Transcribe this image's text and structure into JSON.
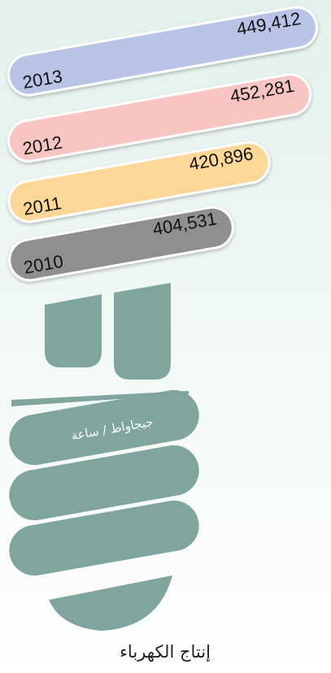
{
  "title": "إنتاج الكهرباء",
  "unit": "جيجاواط / ساعة",
  "items": [
    {
      "year": "2013",
      "value": "449,412"
    },
    {
      "year": "2012",
      "value": "452,281"
    },
    {
      "year": "2011",
      "value": "420,896"
    },
    {
      "year": "2010",
      "value": "404,531"
    }
  ]
}
